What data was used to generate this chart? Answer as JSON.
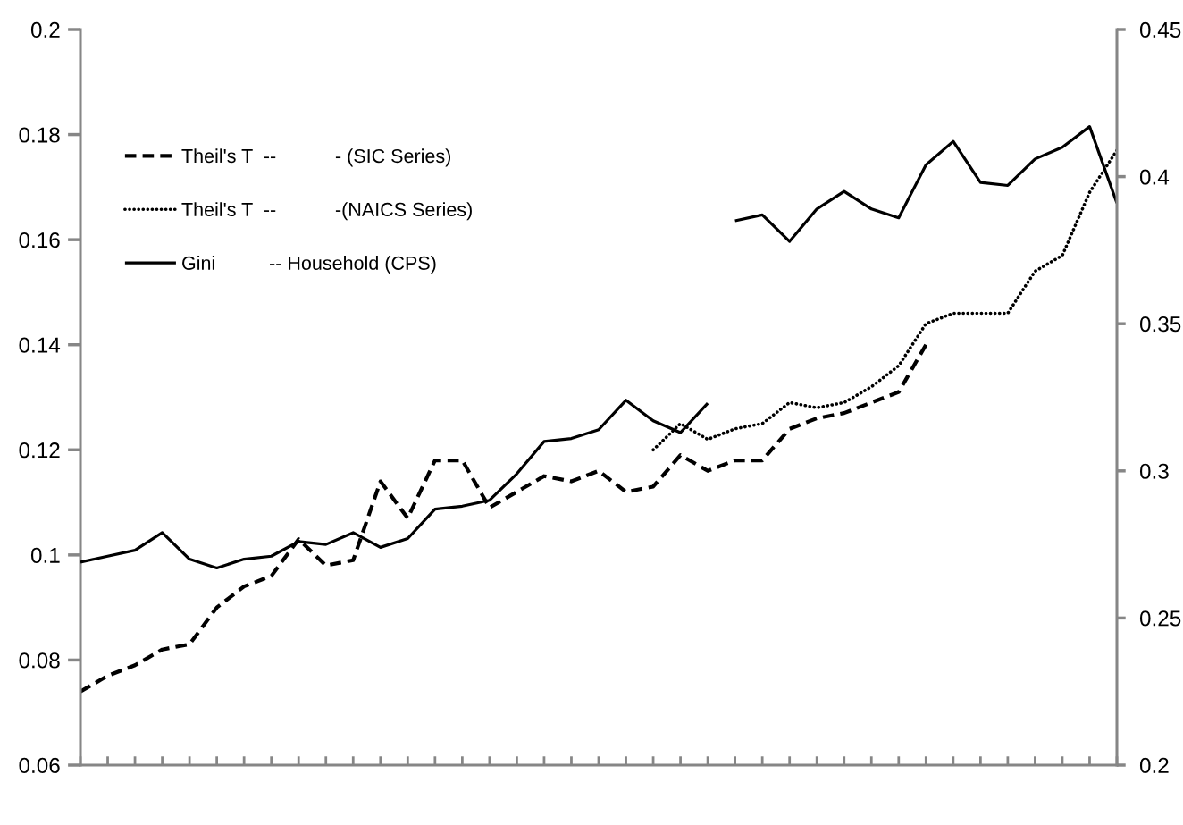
{
  "chart_data": {
    "type": "line",
    "categories": [
      null,
      null,
      null,
      null,
      null,
      null,
      null,
      null,
      null,
      null,
      null,
      null,
      null,
      null,
      null,
      null,
      null,
      null,
      null,
      null,
      null,
      null,
      null,
      null,
      null,
      null,
      null,
      null,
      null,
      null,
      null,
      null,
      null,
      null,
      null,
      null,
      null,
      null,
      null
    ],
    "series": [
      {
        "name": "Theil's T  --           - (SIC Series)",
        "color": "#000000",
        "line_style": "dashed",
        "values": [
          0.074,
          0.077,
          0.079,
          0.082,
          0.083,
          0.09,
          0.094,
          0.096,
          0.103,
          0.098,
          0.099,
          0.114,
          0.107,
          0.118,
          0.118,
          0.109,
          0.112,
          0.115,
          0.114,
          0.116,
          0.112,
          0.113,
          0.119,
          0.116,
          0.118,
          0.118,
          0.124,
          0.126,
          0.127,
          0.129,
          0.131,
          0.14,
          null,
          null,
          null,
          null,
          null,
          null,
          null
        ]
      },
      {
        "name": "Theil's T  --           -(NAICS Series)",
        "color": "#000000",
        "line_style": "dotted",
        "values": [
          null,
          null,
          null,
          null,
          null,
          null,
          null,
          null,
          null,
          null,
          null,
          null,
          null,
          null,
          null,
          null,
          null,
          null,
          null,
          null,
          null,
          0.12,
          0.125,
          0.122,
          0.124,
          0.125,
          0.129,
          0.128,
          0.129,
          0.132,
          0.136,
          0.144,
          0.146,
          0.146,
          0.146,
          0.154,
          0.157,
          0.169,
          0.177
        ]
      },
      {
        "name": "Gini          -- Household (CPS)",
        "color": "#000000",
        "line_style": "solid",
        "axis": "y2",
        "values": [
          0.269,
          0.271,
          0.273,
          0.279,
          0.27,
          0.267,
          0.27,
          0.271,
          0.276,
          0.275,
          0.279,
          0.274,
          0.277,
          0.287,
          0.288,
          0.29,
          0.299,
          0.31,
          0.311,
          0.314,
          0.324,
          0.317,
          0.313,
          0.323,
          null,
          null,
          null,
          null,
          null,
          null,
          null,
          null,
          null,
          null,
          null,
          null,
          null,
          null,
          null
        ]
      },
      {
        "color": "#000000",
        "line_style": "solid",
        "axis": "y2",
        "values": [
          null,
          null,
          null,
          null,
          null,
          null,
          null,
          null,
          null,
          null,
          null,
          null,
          null,
          null,
          null,
          null,
          null,
          null,
          null,
          null,
          null,
          null,
          null,
          null,
          0.385,
          0.387,
          0.378,
          0.389,
          0.395,
          0.389,
          0.386,
          0.404,
          0.412,
          0.398,
          0.397,
          0.406,
          0.41,
          0.417,
          0.391
        ]
      }
    ],
    "ylim": [
      0.06,
      0.2
    ],
    "yticks": [
      0.06,
      0.08,
      0.1,
      0.12,
      0.14,
      0.16,
      0.18,
      0.2
    ],
    "y2lim": [
      0.2,
      0.45
    ],
    "y2ticks": [
      0.2,
      0.25,
      0.3,
      0.35,
      0.4,
      0.45
    ],
    "legend": "top left"
  }
}
